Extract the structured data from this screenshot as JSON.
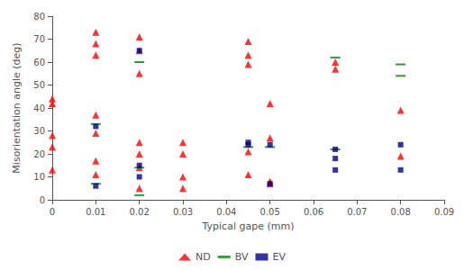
{
  "chart_data": {
    "type": "scatter",
    "xlabel": "Typical gape (mm)",
    "ylabel": "Misorientation angle (deg)",
    "xlim": [
      0,
      0.09
    ],
    "ylim": [
      0,
      80
    ],
    "xticks": [
      0,
      0.01,
      0.02,
      0.03,
      0.04,
      0.05,
      0.06,
      0.07,
      0.08,
      0.09
    ],
    "yticks": [
      0,
      10,
      20,
      30,
      40,
      50,
      60,
      70,
      80
    ],
    "grid": false,
    "legend": "bottom",
    "series": [
      {
        "name": "ND",
        "color": "#ff0000",
        "marker": "triangle",
        "x": [
          0.0,
          0.0,
          0.0,
          0.0,
          0.0,
          0.01,
          0.01,
          0.01,
          0.01,
          0.01,
          0.01,
          0.01,
          0.02,
          0.02,
          0.02,
          0.02,
          0.02,
          0.02,
          0.02,
          0.03,
          0.03,
          0.03,
          0.03,
          0.045,
          0.045,
          0.045,
          0.045,
          0.045,
          0.05,
          0.05,
          0.05,
          0.05,
          0.065,
          0.065,
          0.08,
          0.08
        ],
        "values": [
          44,
          42,
          28,
          23,
          13,
          73,
          68,
          63,
          37,
          29,
          17,
          11,
          71,
          65,
          55,
          25,
          20,
          14,
          5,
          25,
          20,
          10,
          5,
          69,
          63,
          59,
          21,
          11,
          42,
          27,
          8,
          7,
          57,
          60,
          39,
          19
        ]
      },
      {
        "name": "BV",
        "color": "#008000",
        "marker": "hline",
        "x": [
          0.01,
          0.01,
          0.02,
          0.02,
          0.02,
          0.045,
          0.05,
          0.065,
          0.065,
          0.08,
          0.08
        ],
        "values": [
          33,
          7,
          60,
          14,
          2,
          23,
          23,
          62,
          22,
          59,
          54
        ]
      },
      {
        "name": "EV",
        "color": "#00008b",
        "marker": "square",
        "x": [
          0.01,
          0.01,
          0.02,
          0.02,
          0.02,
          0.045,
          0.045,
          0.05,
          0.05,
          0.065,
          0.065,
          0.065,
          0.08,
          0.08
        ],
        "values": [
          32,
          6,
          65,
          15,
          10,
          25,
          24,
          24,
          7,
          22,
          18,
          13,
          24,
          13
        ]
      }
    ]
  }
}
